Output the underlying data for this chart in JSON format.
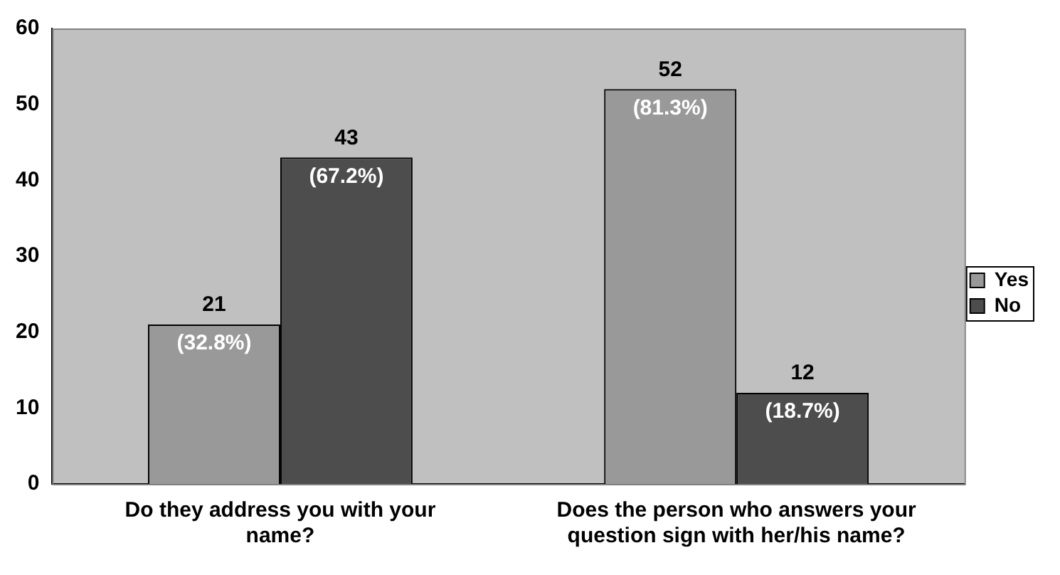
{
  "chart_data": {
    "type": "bar",
    "categories": [
      "Do they address you with your name?",
      "Does the person who answers your question sign with her/his name?"
    ],
    "series": [
      {
        "name": "Yes",
        "color": "#999999",
        "values": [
          21,
          52
        ],
        "value_labels": [
          "21\n(32.8%)",
          "52\n(81.3%)"
        ]
      },
      {
        "name": "No",
        "color": "#4d4d4d",
        "values": [
          43,
          12
        ],
        "value_labels": [
          "43\n(67.2%)",
          "12\n(18.7%)"
        ]
      }
    ],
    "ylim": [
      0,
      60
    ],
    "yticks": [
      0,
      10,
      20,
      30,
      40,
      50,
      60
    ],
    "grid": false,
    "legend": "right"
  }
}
